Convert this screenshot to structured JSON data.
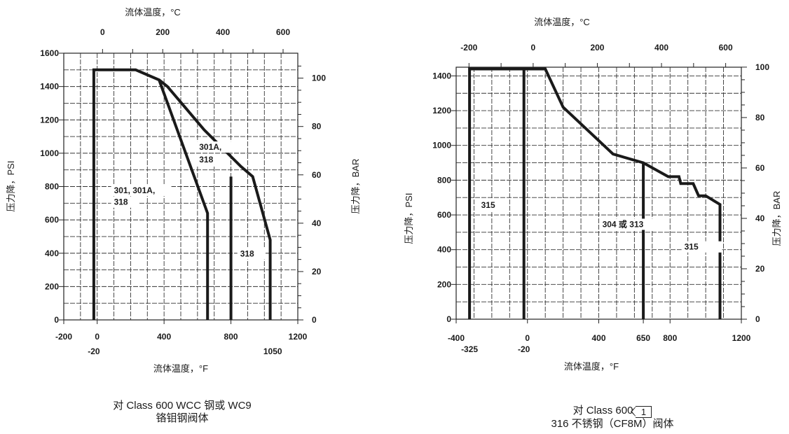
{
  "chart_data": [
    {
      "type": "line",
      "top_axis_title": "流体温度，°C",
      "bottom_axis_title": "流体温度，°F",
      "left_axis_title": "压力降，PSI",
      "right_axis_title": "压力降，BAR",
      "xlim_f": [
        -200,
        1200
      ],
      "ylim_psi": [
        0,
        1600
      ],
      "grid": true,
      "bottom_ticks": [
        "-200",
        "0",
        "400",
        "800",
        "1200"
      ],
      "bottom_extra_labels": [
        "-20",
        "1050"
      ],
      "top_ticks": [
        "0",
        "200",
        "400",
        "600"
      ],
      "left_ticks": [
        "0",
        "200",
        "400",
        "600",
        "800",
        "1000",
        "1200",
        "1400",
        "1600"
      ],
      "right_ticks": [
        "0",
        "20",
        "40",
        "60",
        "80",
        "100"
      ],
      "series": [
        {
          "name": "301, 301A, 318",
          "points": [
            [
              -20,
              0
            ],
            [
              -20,
              1500
            ],
            [
              230,
              1500
            ],
            [
              370,
              1440
            ],
            [
              660,
              640
            ],
            [
              660,
              0
            ]
          ]
        },
        {
          "name": "301A, 318",
          "points": [
            [
              370,
              1440
            ],
            [
              420,
              1400
            ],
            [
              640,
              1140
            ],
            [
              860,
              920
            ],
            [
              930,
              860
            ],
            [
              1035,
              480
            ],
            [
              1035,
              0
            ]
          ]
        },
        {
          "name": "318",
          "points": [
            [
              800,
              860
            ],
            [
              800,
              0
            ]
          ]
        }
      ],
      "labels": [
        {
          "text": "301, 301A,",
          "x": 100,
          "y": 760
        },
        {
          "text": "318",
          "x": 100,
          "y": 690
        },
        {
          "text": "301A,",
          "x": 610,
          "y": 1020
        },
        {
          "text": "318",
          "x": 610,
          "y": 945
        },
        {
          "text": "318",
          "x": 855,
          "y": 380
        }
      ],
      "caption_lines": [
        "对 Class 600 WCC 钢或 WC9",
        "铬钼钢阀体"
      ]
    },
    {
      "type": "line",
      "top_axis_title": "流体温度，°C",
      "bottom_axis_title": "流体温度，°F",
      "left_axis_title": "压力降，PSI",
      "right_axis_title": "压力降，BAR",
      "xlim_f": [
        -400,
        1200
      ],
      "ylim_psi": [
        0,
        1450
      ],
      "grid": true,
      "bottom_ticks": [
        "-400",
        "0",
        "400",
        "650",
        "800",
        "1200"
      ],
      "bottom_extra_labels": [
        "-325",
        "-20"
      ],
      "top_ticks": [
        "-200",
        "0",
        "200",
        "400",
        "600"
      ],
      "left_ticks": [
        "0",
        "200",
        "400",
        "600",
        "800",
        "1000",
        "1200",
        "1400"
      ],
      "right_ticks": [
        "0",
        "20",
        "40",
        "60",
        "80",
        "100"
      ],
      "series": [
        {
          "name": "315",
          "points": [
            [
              -325,
              0
            ],
            [
              -325,
              1440
            ],
            [
              100,
              1440
            ],
            [
              200,
              1220
            ],
            [
              480,
              950
            ],
            [
              650,
              900
            ],
            [
              790,
              820
            ],
            [
              850,
              820
            ],
            [
              860,
              780
            ],
            [
              930,
              780
            ],
            [
              960,
              710
            ],
            [
              1000,
              710
            ],
            [
              1080,
              660
            ],
            [
              1080,
              0
            ]
          ]
        },
        {
          "name": "304 或 313",
          "points": [
            [
              -20,
              0
            ],
            [
              -20,
              1440
            ]
          ]
        },
        {
          "name": "304 或 313",
          "points": [
            [
              650,
              0
            ],
            [
              650,
              900
            ]
          ]
        }
      ],
      "labels": [
        {
          "text": "315",
          "x": -260,
          "y": 640
        },
        {
          "text": "304 或 313",
          "x": 420,
          "y": 530
        },
        {
          "text": "315",
          "x": 880,
          "y": 400
        }
      ],
      "caption_prefix": "对 Class 600",
      "caption_badge": "1",
      "caption_lines": [
        "316 不锈钢（CF8M）阀体"
      ]
    }
  ]
}
